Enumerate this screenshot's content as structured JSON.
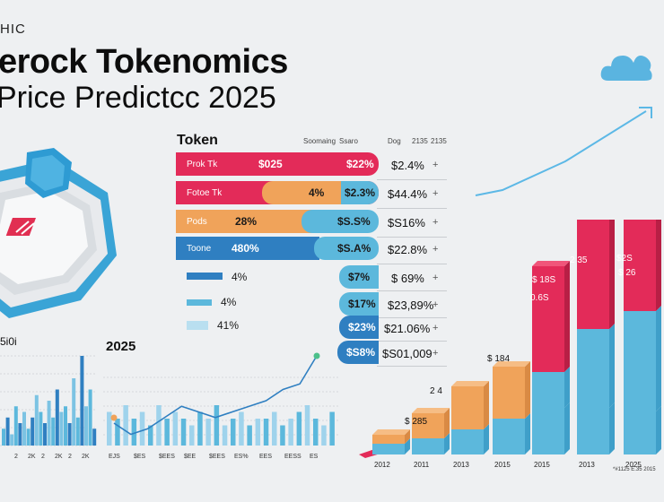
{
  "header": {
    "eyebrow": "HIC",
    "title_line1": "erock Tokenomics",
    "title_line2": "Price Predictcc 2025",
    "left_chart_label": "5i0i",
    "mid_chart_label": "2025"
  },
  "table": {
    "title": "Token",
    "headers": [
      "Soomaing",
      "Ssaro",
      "Dog",
      "2135",
      "2135"
    ],
    "rows": [
      {
        "label": "Prok Tk",
        "cells": [
          "$025",
          "$22%"
        ],
        "right": "$2.4%",
        "plus": "+"
      },
      {
        "label": "Fotoe Tk",
        "cells": [
          "4%",
          "$2.3%"
        ],
        "right": "$44.4%",
        "plus": "+"
      },
      {
        "label": "Pods",
        "cells": [
          "28%",
          "$S.S%"
        ],
        "right": "$S16%",
        "plus": "+"
      },
      {
        "label": "Toone",
        "cells": [
          "480%",
          "$S.A%"
        ],
        "right": "$22.8%",
        "plus": "+"
      },
      {
        "label": "",
        "cells": [
          "4%",
          "$7%"
        ],
        "right": "$ 69%",
        "plus": "+"
      },
      {
        "label": "",
        "cells": [
          "4%",
          "$17%"
        ],
        "right": "$23,89%",
        "plus": "+"
      },
      {
        "label": "",
        "cells": [
          "41%",
          "$23%"
        ],
        "right": "$21.06%",
        "plus": "+"
      },
      {
        "label": "",
        "cells": [
          "",
          "$S8%"
        ],
        "right": "$S01,009",
        "plus": "+"
      }
    ],
    "colors": {
      "red": "#e32b59",
      "orange": "#f0a35a",
      "blue": "#5cb8dc",
      "darkblue": "#2f7fc1"
    }
  },
  "chart_data": [
    {
      "type": "bar",
      "title": "",
      "series": [
        {
          "values": [
            3,
            5,
            2,
            7,
            4,
            6,
            3,
            5,
            9,
            6,
            4,
            8,
            5,
            10,
            6,
            7,
            4,
            12,
            5,
            16,
            7,
            10,
            3
          ]
        }
      ],
      "x_tick_labels": [
        "2",
        "2K",
        "2",
        "2K",
        "2",
        "2K"
      ]
    },
    {
      "type": "bar",
      "title": "2025",
      "series": [
        {
          "values": [
            5,
            4,
            6,
            4,
            5,
            3,
            6,
            4,
            5,
            4,
            3,
            5,
            4,
            6,
            3,
            4,
            5,
            3,
            4,
            4,
            5,
            3,
            4,
            5,
            6,
            4,
            3,
            5
          ]
        }
      ],
      "line": {
        "values": [
          4,
          2,
          3,
          5,
          7,
          6,
          5,
          6,
          7,
          8,
          10,
          11,
          16
        ]
      },
      "x_tick_labels": [
        "EJS",
        "$ES",
        "$EES",
        "$EE",
        "$EES",
        "ES%",
        "EES",
        "EESS",
        "ES"
      ]
    },
    {
      "type": "bar",
      "title": "",
      "categories": [
        "2012",
        "2011",
        "2013",
        "2015",
        "2015",
        "2013",
        "2025"
      ],
      "series": [
        {
          "name": "",
          "values": [
            12,
            18,
            28,
            40,
            52,
            52,
            48
          ]
        },
        {
          "name": "",
          "values": [
            10,
            28,
            48,
            58,
            40,
            88,
            112
          ]
        },
        {
          "name": "",
          "values": [
            0,
            0,
            0,
            0,
            118,
            130,
            112
          ]
        }
      ],
      "bar_labels": [
        "",
        "$ 285",
        "2 4",
        "$ 184",
        "$ 18S",
        "0.6S",
        "2 35",
        "$2S",
        "$ 26"
      ],
      "note": "*#1125 E.35 2015"
    }
  ]
}
